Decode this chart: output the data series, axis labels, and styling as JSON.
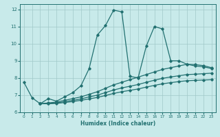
{
  "xlabel": "Humidex (Indice chaleur)",
  "ylabel": "",
  "xlim": [
    -0.5,
    23.5
  ],
  "ylim": [
    6,
    12.3
  ],
  "yticks": [
    6,
    7,
    8,
    9,
    10,
    11,
    12
  ],
  "xticks": [
    0,
    1,
    2,
    3,
    4,
    5,
    6,
    7,
    8,
    9,
    10,
    11,
    12,
    13,
    14,
    15,
    16,
    17,
    18,
    19,
    20,
    21,
    22,
    23
  ],
  "bg_color": "#c8eaea",
  "grid_color": "#a0c8c8",
  "line_color": "#217070",
  "lines": [
    {
      "x": [
        0,
        1,
        2,
        3,
        4,
        5,
        6,
        7,
        8,
        9,
        10,
        11,
        12,
        13,
        14,
        15,
        16,
        17,
        18,
        19,
        20,
        21,
        22,
        23
      ],
      "y": [
        7.75,
        6.85,
        6.5,
        6.8,
        6.65,
        6.9,
        7.15,
        7.55,
        8.55,
        10.5,
        11.05,
        11.95,
        11.85,
        8.1,
        8.0,
        9.85,
        11.0,
        10.85,
        9.0,
        9.0,
        8.8,
        8.7,
        8.65,
        8.55
      ]
    },
    {
      "x": [
        2,
        3,
        4,
        5,
        6,
        7,
        8,
        9,
        10,
        11,
        12,
        13,
        14,
        15,
        16,
        17,
        18,
        19,
        20,
        21,
        22,
        23
      ],
      "y": [
        6.5,
        6.55,
        6.6,
        6.7,
        6.8,
        6.9,
        7.05,
        7.2,
        7.4,
        7.6,
        7.75,
        7.9,
        8.05,
        8.2,
        8.35,
        8.5,
        8.6,
        8.7,
        8.8,
        8.78,
        8.72,
        8.6
      ]
    },
    {
      "x": [
        2,
        3,
        4,
        5,
        6,
        7,
        8,
        9,
        10,
        11,
        12,
        13,
        14,
        15,
        16,
        17,
        18,
        19,
        20,
        21,
        22,
        23
      ],
      "y": [
        6.5,
        6.52,
        6.55,
        6.62,
        6.7,
        6.78,
        6.9,
        7.0,
        7.15,
        7.3,
        7.42,
        7.52,
        7.62,
        7.75,
        7.87,
        7.98,
        8.06,
        8.13,
        8.2,
        8.22,
        8.25,
        8.28
      ]
    },
    {
      "x": [
        2,
        3,
        4,
        5,
        6,
        7,
        8,
        9,
        10,
        11,
        12,
        13,
        14,
        15,
        16,
        17,
        18,
        19,
        20,
        21,
        22,
        23
      ],
      "y": [
        6.5,
        6.5,
        6.52,
        6.57,
        6.63,
        6.7,
        6.78,
        6.87,
        6.98,
        7.1,
        7.2,
        7.28,
        7.36,
        7.47,
        7.57,
        7.66,
        7.73,
        7.79,
        7.84,
        7.86,
        7.88,
        7.9
      ]
    }
  ],
  "marker": "D",
  "marker_size": 1.8,
  "line_width": 0.9
}
